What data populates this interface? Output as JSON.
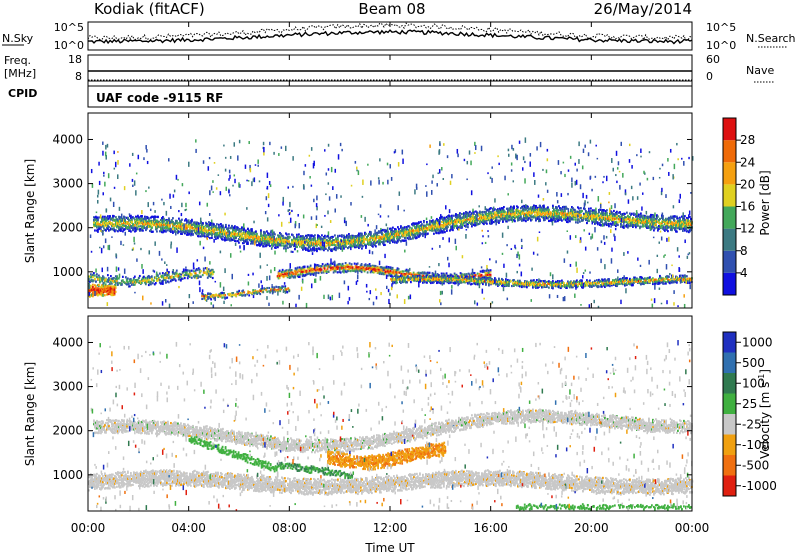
{
  "header": {
    "station": "Kodiak (fitACF)",
    "beam": "Beam 08",
    "date": "26/May/2014"
  },
  "nsky_panel": {
    "left_label": "N.Sky",
    "right_label": "N.Search",
    "left_ticks": [
      "10^5",
      "10^0"
    ],
    "right_ticks": [
      "10^5",
      "10^0"
    ]
  },
  "freq_panel": {
    "left_label_1": "Freq.",
    "left_label_2": "[MHz]",
    "right_label": "Nave",
    "left_ticks": [
      "18",
      "8"
    ],
    "right_ticks": [
      "60",
      "0"
    ]
  },
  "cpid": {
    "label": "CPID",
    "value": "UAF code -9115 RF"
  },
  "chart_data": [
    {
      "type": "heatmap",
      "title": "",
      "ylabel": "Slant Range [km]",
      "ylim": [
        180,
        4600
      ],
      "yticks": [
        "1000",
        "2000",
        "3000",
        "4000"
      ],
      "xlim": [
        0,
        24
      ],
      "colorbar": {
        "label": "Power [dB]",
        "ticks": [
          "4",
          "8",
          "12",
          "16",
          "20",
          "24",
          "28"
        ],
        "colors": [
          "#1010e0",
          "#3050b0",
          "#3c7a82",
          "#43a85a",
          "#e0d020",
          "#f5a010",
          "#ef6a08",
          "#dd1010"
        ]
      }
    },
    {
      "type": "heatmap",
      "title": "",
      "ylabel": "Slant Range [km]",
      "ylim": [
        180,
        4600
      ],
      "yticks": [
        "1000",
        "2000",
        "3000",
        "4000"
      ],
      "xlim": [
        0,
        24
      ],
      "xlabel": "Time UT",
      "xticks": [
        "00:00",
        "04:00",
        "08:00",
        "12:00",
        "16:00",
        "20:00",
        "00:00"
      ],
      "colorbar": {
        "label": "Velocity [m s^-1]",
        "ticks": [
          "1000",
          "500",
          "100",
          "25",
          "-25",
          "-100",
          "-500",
          "-1000"
        ],
        "colors": [
          "#2030c0",
          "#3070b0",
          "#307a50",
          "#40b040",
          "#c8c8c8",
          "#f0a010",
          "#f07010",
          "#e02010"
        ]
      }
    }
  ]
}
